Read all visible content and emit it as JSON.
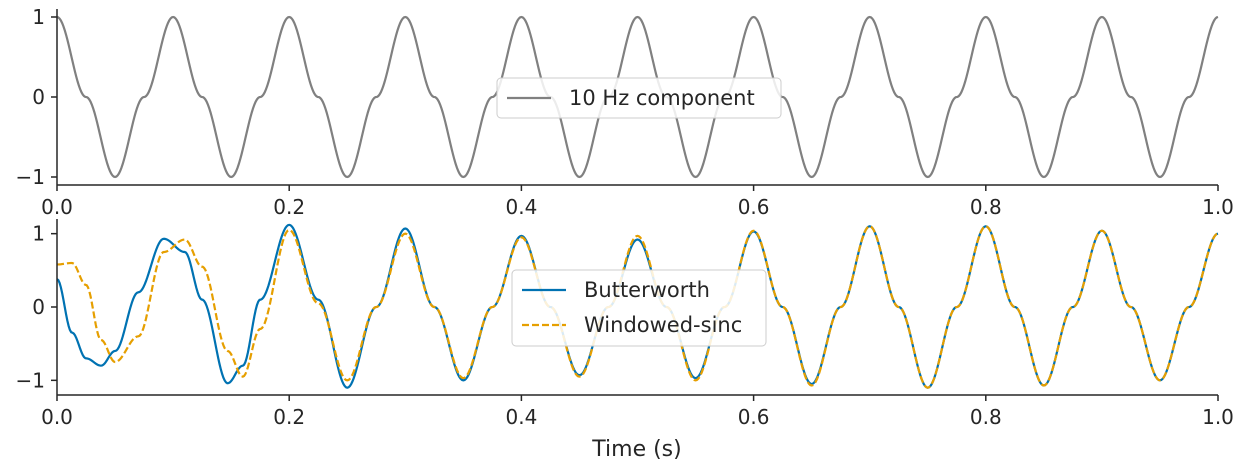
{
  "figure": {
    "xlabel": "Time (s)"
  },
  "chart_data": [
    {
      "type": "line",
      "title": "",
      "xlabel": "",
      "ylabel": "",
      "xlim": [
        0.0,
        1.0
      ],
      "ylim": [
        -1.1,
        1.1
      ],
      "x_ticks": [
        "0.0",
        "0.2",
        "0.4",
        "0.6",
        "0.8",
        "1.0"
      ],
      "y_ticks": [
        "1",
        "0",
        "−1"
      ],
      "y_tick_values": [
        1,
        0,
        -1
      ],
      "grid": false,
      "legend_position": "center",
      "x": [
        0.0,
        0.025,
        0.05,
        0.075,
        0.1,
        0.125,
        0.15,
        0.175,
        0.2,
        0.225,
        0.25,
        0.275,
        0.3,
        0.325,
        0.35,
        0.375,
        0.4,
        0.425,
        0.45,
        0.475,
        0.5,
        0.525,
        0.55,
        0.575,
        0.6,
        0.625,
        0.65,
        0.675,
        0.7,
        0.725,
        0.75,
        0.775,
        0.8,
        0.825,
        0.85,
        0.875,
        0.9,
        0.925,
        0.95,
        0.975,
        1.0
      ],
      "series": [
        {
          "name": "10 Hz component",
          "color": "#808080",
          "style": "solid",
          "values": [
            1.0,
            0.0,
            -1.0,
            0.0,
            1.0,
            0.0,
            -1.0,
            0.0,
            1.0,
            0.0,
            -1.0,
            0.0,
            1.0,
            0.0,
            -1.0,
            0.0,
            1.0,
            0.0,
            -1.0,
            0.0,
            1.0,
            0.0,
            -1.0,
            0.0,
            1.0,
            0.0,
            -1.0,
            0.0,
            1.0,
            0.0,
            -1.0,
            0.0,
            1.0,
            0.0,
            -1.0,
            0.0,
            1.0,
            0.0,
            -1.0,
            0.0,
            1.0
          ]
        }
      ]
    },
    {
      "type": "line",
      "title": "",
      "xlabel": "Time (s)",
      "ylabel": "",
      "xlim": [
        0.0,
        1.0
      ],
      "ylim": [
        -1.2,
        1.2
      ],
      "x_ticks": [
        "0.0",
        "0.2",
        "0.4",
        "0.6",
        "0.8",
        "1.0"
      ],
      "y_ticks": [
        "1",
        "0",
        "−1"
      ],
      "y_tick_values": [
        1,
        0,
        -1
      ],
      "grid": false,
      "legend_position": "center",
      "x": [
        0.0,
        0.013,
        0.025,
        0.038,
        0.05,
        0.07,
        0.092,
        0.11,
        0.125,
        0.147,
        0.16,
        0.175,
        0.2,
        0.225,
        0.25,
        0.275,
        0.3,
        0.325,
        0.35,
        0.375,
        0.4,
        0.425,
        0.45,
        0.475,
        0.5,
        0.525,
        0.55,
        0.575,
        0.6,
        0.625,
        0.65,
        0.675,
        0.7,
        0.725,
        0.75,
        0.775,
        0.8,
        0.825,
        0.85,
        0.875,
        0.9,
        0.925,
        0.95,
        0.975,
        1.0
      ],
      "series": [
        {
          "name": "Butterworth",
          "color": "#0072B2",
          "style": "solid",
          "values": [
            0.38,
            -0.35,
            -0.7,
            -0.8,
            -0.6,
            0.2,
            0.93,
            0.75,
            0.1,
            -1.04,
            -0.8,
            0.1,
            1.12,
            0.1,
            -1.1,
            0.0,
            1.07,
            0.0,
            -1.0,
            0.0,
            0.97,
            0.0,
            -0.93,
            0.0,
            0.92,
            0.0,
            -0.97,
            0.0,
            1.03,
            0.0,
            -1.05,
            0.0,
            1.1,
            0.0,
            -1.1,
            0.0,
            1.1,
            0.0,
            -1.07,
            0.0,
            1.04,
            0.0,
            -1.0,
            0.0,
            1.0
          ]
        },
        {
          "name": "Windowed-sinc",
          "color": "#E69F00",
          "style": "dashed",
          "values": [
            0.58,
            0.6,
            0.3,
            -0.45,
            -0.75,
            -0.4,
            0.75,
            0.92,
            0.55,
            -0.6,
            -0.95,
            -0.3,
            1.05,
            0.05,
            -1.0,
            0.0,
            1.0,
            0.0,
            -0.97,
            0.0,
            0.95,
            0.0,
            -0.95,
            0.0,
            0.97,
            0.0,
            -1.0,
            0.0,
            1.04,
            0.0,
            -1.07,
            0.0,
            1.1,
            0.0,
            -1.1,
            0.0,
            1.1,
            0.0,
            -1.07,
            0.0,
            1.04,
            0.0,
            -1.0,
            0.0,
            1.0
          ]
        }
      ]
    }
  ]
}
